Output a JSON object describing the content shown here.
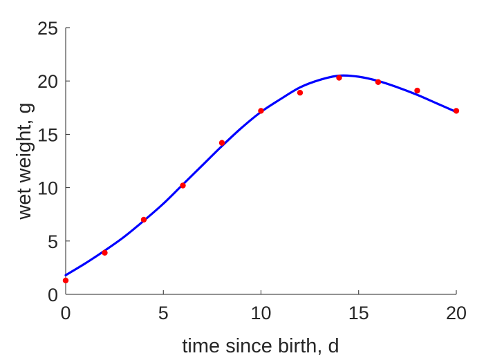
{
  "chart_data": {
    "type": "scatter",
    "title": "",
    "xlabel": "time since birth, d",
    "ylabel": "wet weight, g",
    "xlim": [
      0,
      20
    ],
    "ylim": [
      0,
      25
    ],
    "xticks": [
      0,
      5,
      10,
      15,
      20
    ],
    "yticks": [
      0,
      5,
      10,
      15,
      20,
      25
    ],
    "grid": false,
    "legend": "none",
    "series": [
      {
        "kind": "scatter",
        "color": "#ff0000",
        "x": [
          0,
          2,
          4,
          6,
          8,
          10,
          12,
          14,
          16,
          18,
          20
        ],
        "y": [
          1.3,
          3.9,
          7.0,
          10.2,
          14.2,
          17.2,
          18.9,
          20.3,
          19.9,
          19.1,
          17.2
        ]
      },
      {
        "kind": "line",
        "color": "#0000ff",
        "x": [
          0,
          1,
          2,
          3,
          4,
          5,
          6,
          7,
          8,
          9,
          10,
          11,
          12,
          13,
          14,
          15,
          16,
          17,
          18,
          19,
          20
        ],
        "y": [
          1.8,
          2.9,
          4.1,
          5.4,
          6.9,
          8.5,
          10.3,
          12.1,
          13.9,
          15.6,
          17.1,
          18.3,
          19.4,
          20.1,
          20.5,
          20.4,
          20.0,
          19.4,
          18.7,
          17.9,
          17.1
        ]
      }
    ]
  }
}
